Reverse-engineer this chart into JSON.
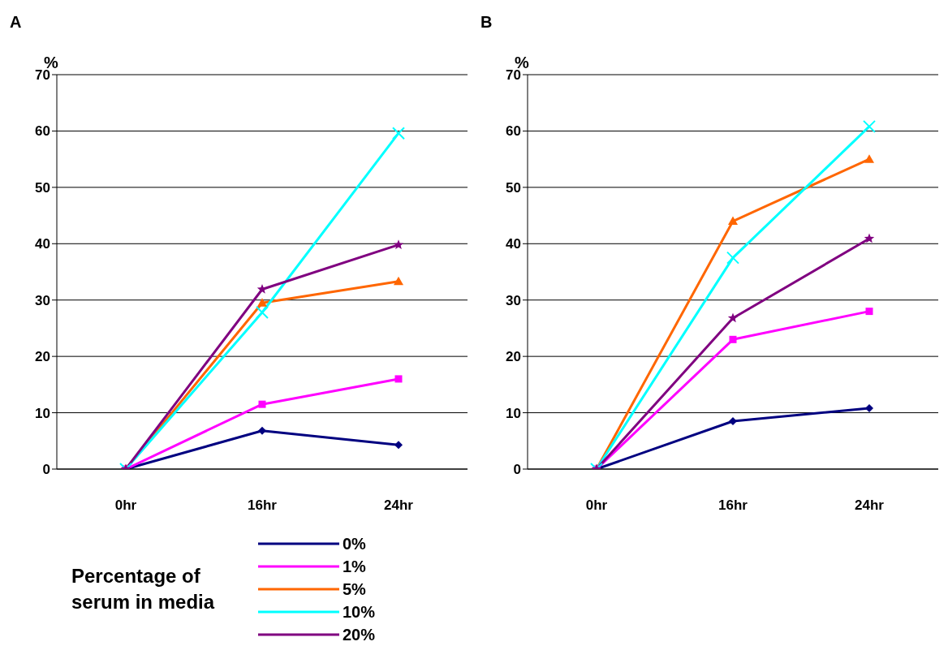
{
  "chart_data": [
    {
      "type": "line",
      "title": "A",
      "ylabel": "%",
      "legend_title": "Percentage of serum in media",
      "categories": [
        "0hr",
        "16hr",
        "24hr"
      ],
      "ylim": [
        0,
        70
      ],
      "yticks": [
        0,
        10,
        20,
        30,
        40,
        50,
        60,
        70
      ],
      "grid": "y",
      "legend": "bottom",
      "line_style": "solid",
      "series": [
        {
          "name": "0%",
          "color": "#000080",
          "marker": "diamond",
          "values": [
            0,
            6.8,
            4.3
          ]
        },
        {
          "name": "1%",
          "color": "#ff00ff",
          "marker": "square",
          "values": [
            0,
            11.5,
            16
          ]
        },
        {
          "name": "5%",
          "color": "#ff6600",
          "marker": "triangle",
          "values": [
            0,
            29.5,
            33.3
          ]
        },
        {
          "name": "10%",
          "color": "#00ffff",
          "marker": "cross",
          "values": [
            0,
            27.8,
            59.6
          ]
        },
        {
          "name": "20%",
          "color": "#800080",
          "marker": "star",
          "values": [
            0,
            31.9,
            39.8
          ]
        }
      ]
    },
    {
      "type": "line",
      "title": "B",
      "ylabel": "%",
      "categories": [
        "0hr",
        "16hr",
        "24hr"
      ],
      "ylim": [
        0,
        70
      ],
      "yticks": [
        0,
        10,
        20,
        30,
        40,
        50,
        60,
        70
      ],
      "grid": "y",
      "line_style": "solid",
      "series": [
        {
          "color": "#000080",
          "marker": "diamond",
          "values": [
            0,
            8.5,
            10.8
          ]
        },
        {
          "color": "#ff00ff",
          "marker": "square",
          "values": [
            0,
            23,
            28
          ]
        },
        {
          "color": "#ff6600",
          "marker": "triangle",
          "values": [
            0,
            44,
            55
          ]
        },
        {
          "color": "#00ffff",
          "marker": "cross",
          "values": [
            0,
            37.5,
            60.8
          ]
        },
        {
          "color": "#800080",
          "marker": "star",
          "values": [
            0,
            26.8,
            40.9
          ]
        }
      ]
    }
  ]
}
